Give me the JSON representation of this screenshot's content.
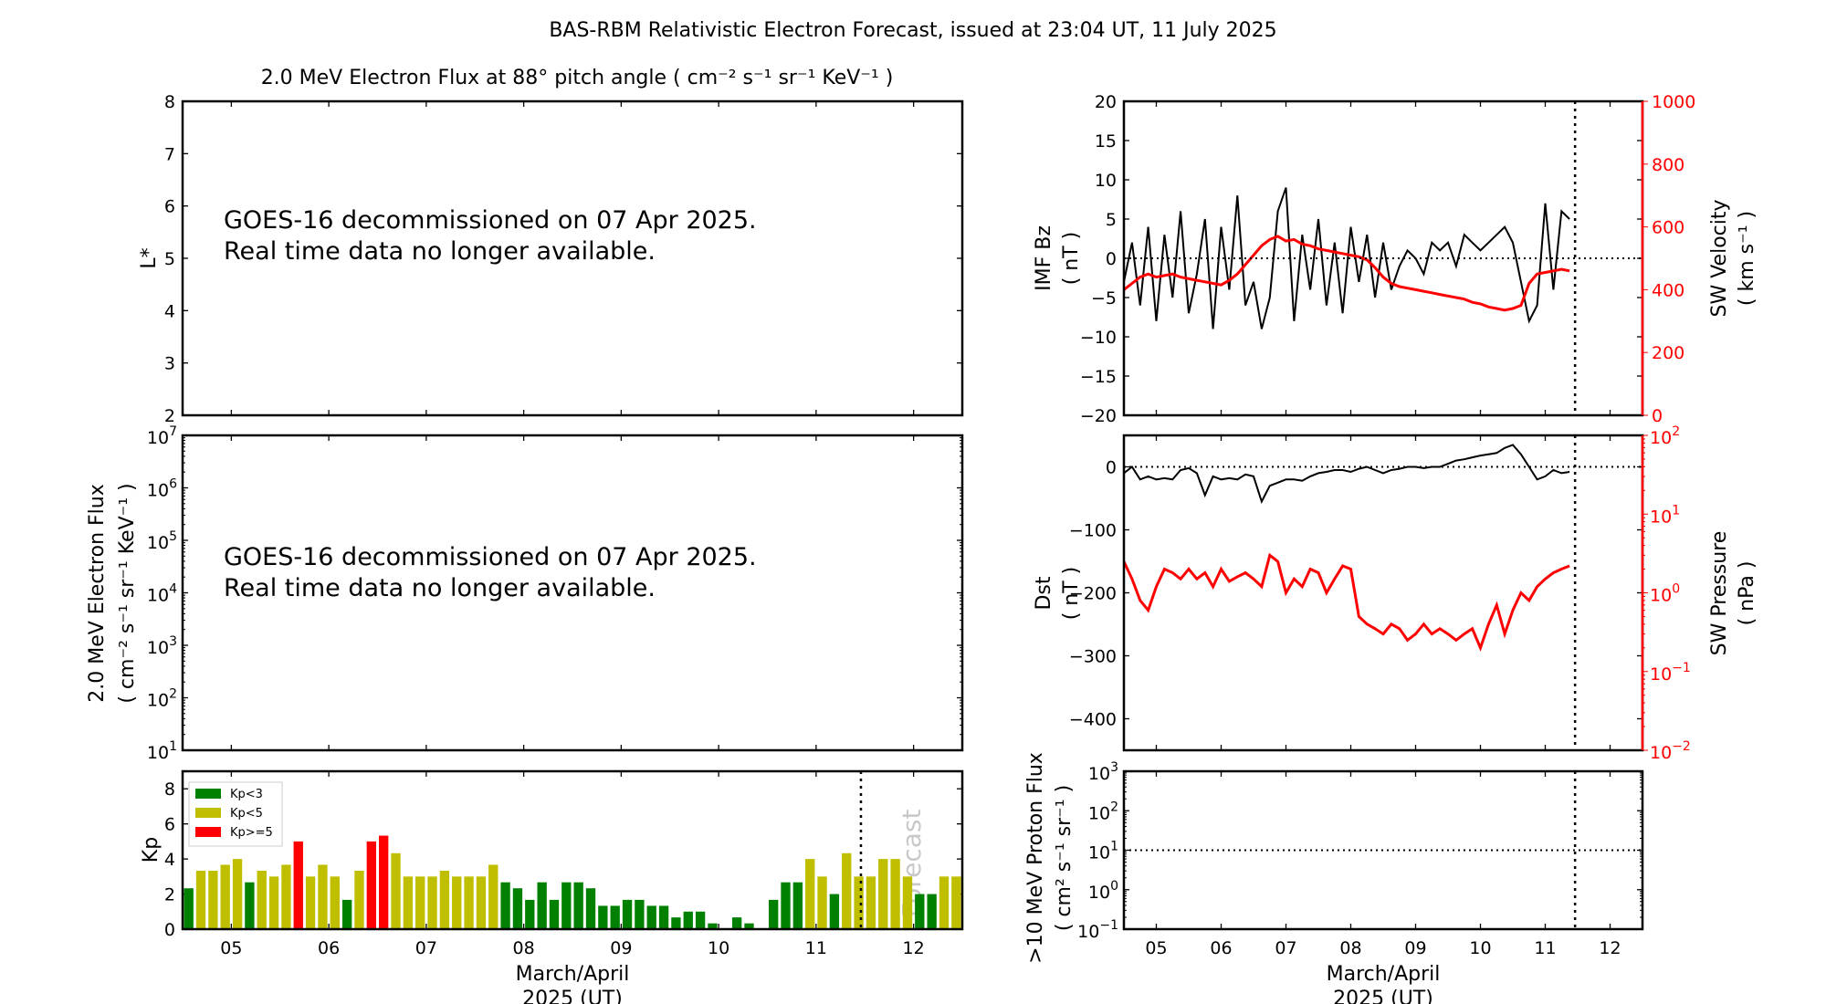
{
  "title": "BAS-RBM Relativistic Electron Forecast, issued at 23:04 UT, 11 July 2025",
  "colors": {
    "kp_low": "#008000",
    "kp_mid": "#bfbf00",
    "kp_high": "#ff0000",
    "secondary_axis": "#ff0000",
    "forecast_text": "#c8c8c8"
  },
  "x_axis": {
    "label_line1": "March/April",
    "label_line2": "2025 (UT)",
    "range": [
      4.5,
      12.5
    ],
    "tick_labels": [
      "05",
      "06",
      "07",
      "08",
      "09",
      "10",
      "11",
      "12"
    ],
    "forecast_time": 11.46
  },
  "notice": {
    "line1": "GOES-16 decommissioned on 07 Apr 2025.",
    "line2": "Real time data no longer available."
  },
  "chart_data": [
    {
      "id": "lstar",
      "type": "heatmap",
      "title": "2.0 MeV Electron Flux at 88° pitch angle ( cm⁻² s⁻¹ sr⁻¹ KeV⁻¹ )",
      "ylabel": "L*",
      "ylim": [
        2,
        8
      ],
      "yticks": [
        2,
        3,
        4,
        5,
        6,
        7,
        8
      ]
    },
    {
      "id": "eflux",
      "type": "line",
      "ylabel_line1": "2.0 MeV Electron Flux",
      "ylabel_line2": "( cm⁻² s⁻¹ sr⁻¹ KeV⁻¹ )",
      "yscale": "log",
      "ylim": [
        10,
        10000000
      ],
      "ytick_exponents": [
        1,
        2,
        3,
        4,
        5,
        6,
        7
      ]
    },
    {
      "id": "kp",
      "type": "bar",
      "ylabel": "Kp",
      "ylim": [
        0,
        9
      ],
      "yticks": [
        0,
        2,
        4,
        6,
        8
      ],
      "start": 4.5,
      "bin_hours": 3,
      "legend": {
        "position": "top-left",
        "entries": [
          "Kp<3",
          "Kp<5",
          "Kp>=5"
        ]
      },
      "forecast_label": "Forecast",
      "values": [
        2.33,
        3.33,
        3.33,
        3.67,
        4,
        2.67,
        3.33,
        3,
        3.67,
        5,
        3,
        3.67,
        3,
        1.67,
        3.33,
        5,
        5.33,
        4.33,
        3,
        3,
        3,
        3.33,
        3,
        3,
        3,
        3.67,
        2.67,
        2.33,
        1.67,
        2.67,
        1.67,
        2.67,
        2.67,
        2.33,
        1.33,
        1.33,
        1.67,
        1.67,
        1.33,
        1.33,
        0.67,
        1,
        1,
        0.33,
        0,
        0.67,
        0.33,
        0,
        1.67,
        2.67,
        2.67,
        4,
        3,
        2,
        4.33,
        3,
        3,
        4,
        4,
        3,
        2,
        2,
        3,
        3
      ]
    },
    {
      "id": "imf",
      "type": "line",
      "ylabel_line1": "IMF Bz",
      "ylabel_line2": "( nT )",
      "ylim": [
        -20,
        20
      ],
      "yticks": [
        -20,
        -15,
        -10,
        -5,
        0,
        5,
        10,
        15,
        20
      ],
      "y2label_line1": "SW Velocity",
      "y2label_line2": "( km s⁻¹ )",
      "y2lim": [
        0,
        1000
      ],
      "y2ticks": [
        0,
        200,
        400,
        600,
        800,
        1000
      ],
      "start": 4.5,
      "step_days": 0.125,
      "series": [
        {
          "axis": "left",
          "color": "#000000",
          "values": [
            -3,
            2,
            -6,
            4,
            -8,
            3,
            -5,
            6,
            -7,
            -2,
            5,
            -9,
            4,
            -4,
            8,
            -6,
            -3,
            -9,
            -5,
            6,
            9,
            -8,
            3,
            -4,
            5,
            -6,
            2,
            -7,
            4,
            -3,
            3,
            -5,
            2,
            -4,
            -1,
            1,
            0,
            -2,
            2,
            1,
            2,
            -1,
            3,
            2,
            1,
            2,
            3,
            4,
            2,
            -3,
            -8,
            -6,
            7,
            -4,
            6,
            5
          ]
        },
        {
          "axis": "right",
          "color": "#ff0000",
          "values": [
            400,
            420,
            440,
            450,
            440,
            445,
            450,
            440,
            435,
            430,
            425,
            420,
            415,
            430,
            450,
            480,
            510,
            540,
            560,
            570,
            555,
            560,
            545,
            540,
            530,
            525,
            520,
            515,
            510,
            505,
            495,
            470,
            440,
            420,
            410,
            405,
            400,
            395,
            390,
            385,
            380,
            375,
            370,
            360,
            355,
            345,
            340,
            335,
            340,
            350,
            420,
            450,
            455,
            460,
            465,
            460
          ]
        }
      ]
    },
    {
      "id": "dst",
      "type": "line",
      "ylabel_line1": "Dst",
      "ylabel_line2": "( nT )",
      "ylim": [
        -450,
        50
      ],
      "yticks": [
        -400,
        -300,
        -200,
        -100,
        0
      ],
      "y2label_line1": "SW Pressure",
      "y2label_line2": "( nPa )",
      "y2scale": "log",
      "y2lim": [
        0.01,
        100
      ],
      "y2tick_exponents": [
        -2,
        -1,
        0,
        1,
        2
      ],
      "start": 4.5,
      "step_days": 0.125,
      "series": [
        {
          "axis": "left",
          "color": "#000000",
          "values": [
            -10,
            0,
            -20,
            -15,
            -20,
            -18,
            -20,
            -5,
            -2,
            -10,
            -45,
            -15,
            -20,
            -18,
            -20,
            -12,
            -15,
            -55,
            -30,
            -25,
            -20,
            -20,
            -22,
            -15,
            -10,
            -8,
            -5,
            -5,
            -8,
            -3,
            0,
            -5,
            -10,
            -5,
            -3,
            0,
            0,
            -2,
            0,
            0,
            5,
            10,
            12,
            15,
            18,
            20,
            22,
            30,
            35,
            20,
            0,
            -20,
            -15,
            -5,
            -10,
            -8
          ]
        },
        {
          "axis": "right",
          "color": "#ff0000",
          "values": [
            2.5,
            1.5,
            0.8,
            0.6,
            1.2,
            2.0,
            1.8,
            1.5,
            2.0,
            1.5,
            1.8,
            1.2,
            2.0,
            1.4,
            1.6,
            1.8,
            1.5,
            1.2,
            3.0,
            2.5,
            1.0,
            1.5,
            1.2,
            2.0,
            1.8,
            1.0,
            1.5,
            2.2,
            2.0,
            0.5,
            0.4,
            0.35,
            0.3,
            0.4,
            0.35,
            0.25,
            0.3,
            0.4,
            0.3,
            0.35,
            0.3,
            0.25,
            0.3,
            0.35,
            0.2,
            0.4,
            0.7,
            0.3,
            0.6,
            1.0,
            0.8,
            1.2,
            1.5,
            1.8,
            2.0,
            2.2
          ]
        }
      ]
    },
    {
      "id": "proton",
      "type": "line",
      "ylabel_line1": ">10 MeV Proton Flux",
      "ylabel_line2": "( cm² s⁻¹ sr⁻¹ )",
      "yscale": "log",
      "ylim": [
        0.1,
        1000
      ],
      "ytick_exponents": [
        -1,
        0,
        1,
        2,
        3
      ],
      "threshold": 10
    }
  ]
}
